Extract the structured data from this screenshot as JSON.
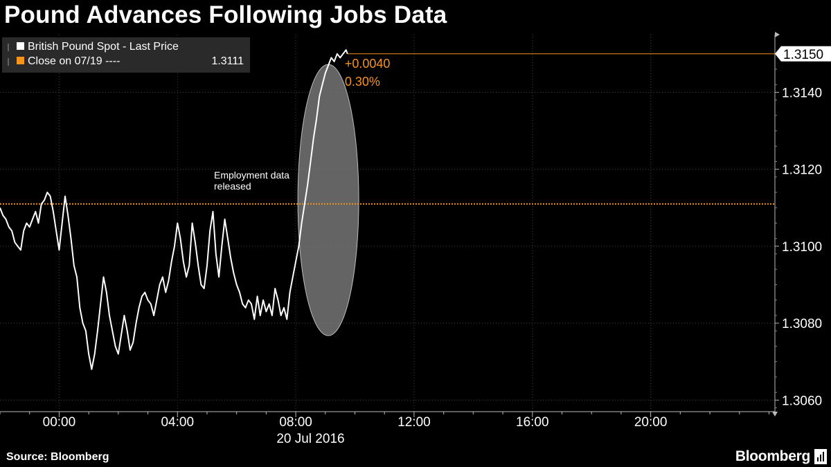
{
  "header": {
    "title": "Pound Advances Following Jobs Data"
  },
  "footer": {
    "source": "Source: Bloomberg",
    "brand": "Bloomberg",
    "brand_icon": "bloomberg-bars-icon"
  },
  "legend": {
    "items": [
      {
        "label": "British Pound Spot - Last Price",
        "value": "",
        "color": "#ffffff",
        "icon": "square-marker-icon"
      },
      {
        "label": "Close on 07/19 ----",
        "value": "1.3111",
        "color": "#f7941d",
        "icon": "square-marker-icon"
      }
    ]
  },
  "annotations": {
    "event": [
      "Employment data",
      "released"
    ],
    "change_abs": "+0.0040",
    "change_pct": "0.30%",
    "last_value": "1.3150"
  },
  "chart_data": {
    "type": "line",
    "title": "Pound Advances Following Jobs Data",
    "date_label": "20 Jul 2016",
    "x_unit": "hours from 00:00 on 20 Jul 2016",
    "xlim": [
      -2,
      24.2
    ],
    "ylim": [
      1.3057,
      1.3155
    ],
    "x_ticks": [
      0,
      4,
      8,
      12,
      16,
      20
    ],
    "x_tick_labels": [
      "00:00",
      "04:00",
      "08:00",
      "12:00",
      "16:00",
      "20:00"
    ],
    "y_ticks": [
      1.306,
      1.308,
      1.31,
      1.312,
      1.314
    ],
    "y_tick_labels": [
      "1.3060",
      "1.3080",
      "1.3100",
      "1.3120",
      "1.3140"
    ],
    "grid": true,
    "legend_position": "top-left",
    "close_reference": {
      "label": "Close on 07/19",
      "value": 1.3111,
      "color": "#f7941d"
    },
    "series": [
      {
        "name": "British Pound Spot - Last Price",
        "color": "#ffffff",
        "x": [
          -2.0,
          -1.9,
          -1.8,
          -1.7,
          -1.6,
          -1.5,
          -1.4,
          -1.3,
          -1.2,
          -1.1,
          -1.0,
          -0.9,
          -0.8,
          -0.7,
          -0.6,
          -0.5,
          -0.4,
          -0.3,
          -0.2,
          -0.1,
          0.0,
          0.1,
          0.2,
          0.3,
          0.4,
          0.5,
          0.6,
          0.7,
          0.8,
          0.9,
          1.0,
          1.1,
          1.2,
          1.3,
          1.4,
          1.5,
          1.6,
          1.7,
          1.8,
          1.9,
          2.0,
          2.1,
          2.2,
          2.3,
          2.4,
          2.5,
          2.6,
          2.7,
          2.8,
          2.9,
          3.0,
          3.1,
          3.2,
          3.3,
          3.4,
          3.5,
          3.6,
          3.7,
          3.8,
          3.9,
          4.0,
          4.1,
          4.2,
          4.3,
          4.4,
          4.5,
          4.6,
          4.7,
          4.8,
          4.9,
          5.0,
          5.1,
          5.2,
          5.3,
          5.4,
          5.5,
          5.6,
          5.7,
          5.8,
          5.9,
          6.0,
          6.1,
          6.2,
          6.3,
          6.4,
          6.5,
          6.6,
          6.7,
          6.8,
          6.9,
          7.0,
          7.1,
          7.2,
          7.3,
          7.4,
          7.5,
          7.6,
          7.7,
          7.8,
          7.9,
          8.0,
          8.1,
          8.2,
          8.3,
          8.4,
          8.5,
          8.6,
          8.7,
          8.8,
          8.9,
          9.0,
          9.1,
          9.2,
          9.3,
          9.4,
          9.5,
          9.6,
          9.7,
          9.75
        ],
        "y": [
          1.311,
          1.3108,
          1.3107,
          1.3105,
          1.3104,
          1.3101,
          1.31,
          1.3099,
          1.3104,
          1.3106,
          1.3105,
          1.3107,
          1.3109,
          1.3106,
          1.3111,
          1.3112,
          1.3114,
          1.3113,
          1.3109,
          1.3104,
          1.3099,
          1.3106,
          1.3113,
          1.3108,
          1.3102,
          1.3095,
          1.3092,
          1.3084,
          1.308,
          1.3078,
          1.3072,
          1.3068,
          1.3072,
          1.3078,
          1.3085,
          1.3092,
          1.3088,
          1.3082,
          1.3078,
          1.3074,
          1.3072,
          1.3077,
          1.3082,
          1.3078,
          1.3073,
          1.3075,
          1.308,
          1.3084,
          1.3087,
          1.3088,
          1.3086,
          1.3085,
          1.3082,
          1.3086,
          1.309,
          1.3092,
          1.3088,
          1.3091,
          1.3096,
          1.31,
          1.3106,
          1.3102,
          1.3096,
          1.3092,
          1.3095,
          1.3106,
          1.3101,
          1.3095,
          1.309,
          1.3089,
          1.3095,
          1.3104,
          1.3109,
          1.3098,
          1.3092,
          1.31,
          1.3107,
          1.3102,
          1.3097,
          1.3093,
          1.309,
          1.3088,
          1.3085,
          1.3084,
          1.3086,
          1.3085,
          1.3081,
          1.3087,
          1.3082,
          1.3086,
          1.3083,
          1.3085,
          1.3082,
          1.3089,
          1.3086,
          1.3082,
          1.3084,
          1.3081,
          1.3088,
          1.3092,
          1.3096,
          1.31,
          1.3106,
          1.3111,
          1.3116,
          1.3122,
          1.3128,
          1.3133,
          1.3139,
          1.3142,
          1.3145,
          1.3147,
          1.3149,
          1.3148,
          1.315,
          1.3149,
          1.315,
          1.3151,
          1.315
        ]
      }
    ]
  },
  "colors": {
    "background": "#000000",
    "accent": "#f7941d",
    "grid": "#444444",
    "line": "#ffffff"
  }
}
